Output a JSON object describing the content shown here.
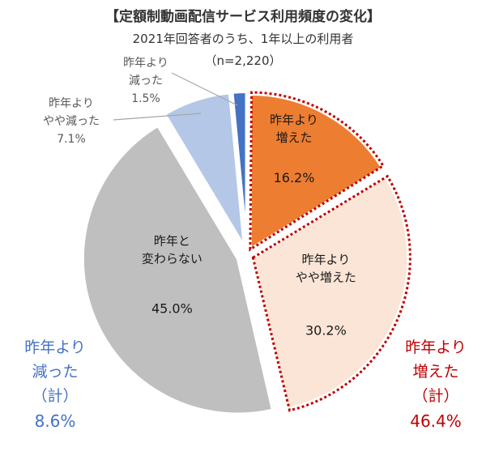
{
  "chart_data": {
    "type": "pie",
    "title": "【定額制動画配信サービス利用頻度の変化】",
    "subtitle": "2021年回答者のうち、1年以上の利用者",
    "sample": "（n=2,220）",
    "slices": [
      {
        "label": [
          "昨年より",
          "増えた"
        ],
        "value": 16.2,
        "value_label": "16.2%",
        "color": "#ed7d31",
        "text_color": "#1a1a1a",
        "group": "increase"
      },
      {
        "label": [
          "昨年より",
          "やや増えた"
        ],
        "value": 30.2,
        "value_label": "30.2%",
        "color": "#fbe5d6",
        "text_color": "#1a1a1a",
        "group": "increase"
      },
      {
        "label": [
          "昨年と",
          "変わらない"
        ],
        "value": 45.0,
        "value_label": "45.0%",
        "color": "#bfbfbf",
        "text_color": "#1a1a1a",
        "group": "same"
      },
      {
        "label": [
          "昨年より",
          "やや減った"
        ],
        "value": 7.1,
        "value_label": "7.1%",
        "color": "#b4c7e7",
        "text_color": "#595959",
        "group": "decrease"
      },
      {
        "label": [
          "昨年より",
          "減った"
        ],
        "value": 1.5,
        "value_label": "1.5%",
        "color": "#4472c4",
        "text_color": "#595959",
        "group": "decrease"
      }
    ],
    "totals": {
      "decrease": {
        "lines": [
          "昨年より",
          "減った",
          "（計）"
        ],
        "value": "8.6%",
        "color": "#4472c4"
      },
      "increase": {
        "lines": [
          "昨年より",
          "増えた",
          "（計）"
        ],
        "value": "46.4%",
        "color": "#c00000"
      }
    },
    "highlight_color": "#c00000"
  }
}
